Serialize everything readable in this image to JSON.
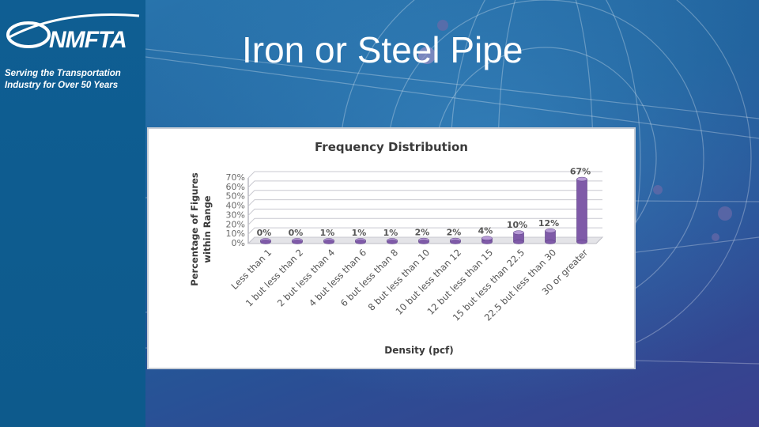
{
  "slide": {
    "title": "Iron or Steel Pipe",
    "logo_text": "NMFTA",
    "tagline_line1": "Serving the Transportation",
    "tagline_line2": "Industry for Over 50 Years"
  },
  "colors": {
    "sidebar": "#0f5e93",
    "bar": "#7f5aa8",
    "bar_top": "#b79bd6",
    "text": "#555555"
  },
  "chart_data": {
    "type": "bar",
    "title": "Frequency Distribution",
    "xlabel": "Density (pcf)",
    "ylabel_line1": "Percentage of Figures",
    "ylabel_line2": "within Range",
    "ylim": [
      0,
      70
    ],
    "yticks": [
      "0%",
      "10%",
      "20%",
      "30%",
      "40%",
      "50%",
      "60%",
      "70%"
    ],
    "categories": [
      "Less than 1",
      "1 but less than 2",
      "2 but less than 4",
      "4 but less than 6",
      "6 but less than 8",
      "8 but less than 10",
      "10 but less than 12",
      "12 but less than 15",
      "15 but less than 22.5",
      "22.5 but less than 30",
      "30 or greater"
    ],
    "values": [
      0,
      0,
      1,
      1,
      1,
      2,
      2,
      4,
      10,
      12,
      67
    ],
    "value_labels": [
      "0%",
      "0%",
      "1%",
      "1%",
      "1%",
      "2%",
      "2%",
      "4%",
      "10%",
      "12%",
      "67%"
    ],
    "grid": true,
    "legend": "none"
  }
}
